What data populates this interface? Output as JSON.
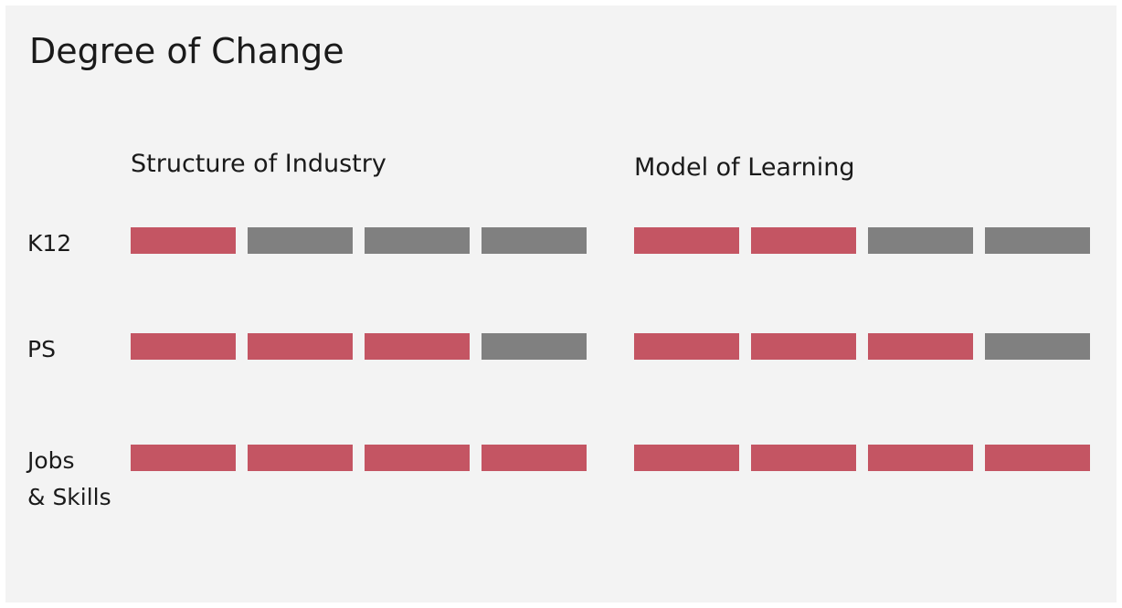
{
  "chart_data": {
    "type": "segmented-bar",
    "title": "Degree of Change",
    "categories": [
      "K12",
      "PS",
      "Jobs\n& Skills"
    ],
    "series": [
      {
        "name": "Structure of Industry",
        "values": [
          1,
          3,
          4
        ]
      },
      {
        "name": "Model of Learning",
        "values": [
          2,
          3,
          4
        ]
      }
    ],
    "xlim": [
      0,
      4
    ],
    "color": "#c45563",
    "empty_color": "#808080"
  }
}
